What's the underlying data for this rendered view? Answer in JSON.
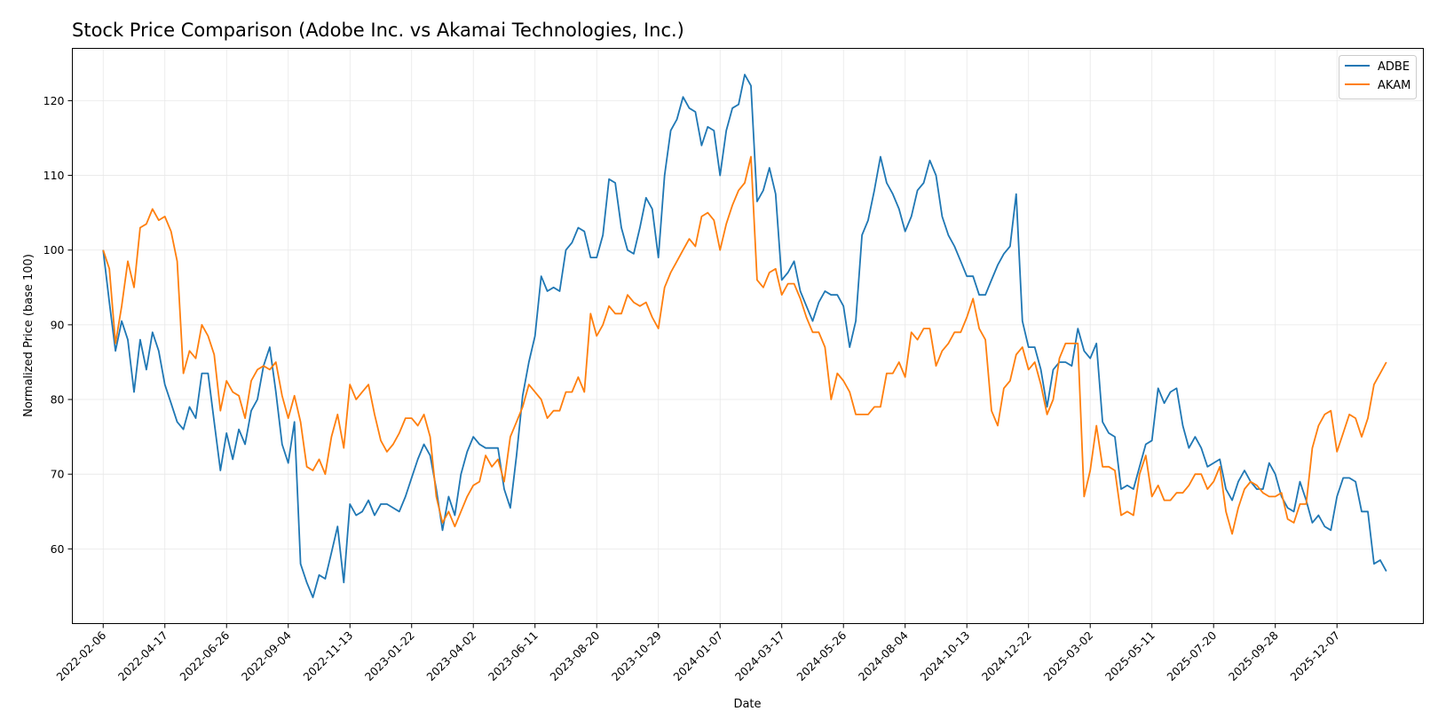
{
  "chart_data": {
    "type": "line",
    "title": "Stock Price Comparison (Adobe Inc. vs Akamai Technologies, Inc.)",
    "xlabel": "Date",
    "ylabel": "Normalized Price (base 100)",
    "ylim": [
      50,
      127
    ],
    "yticks": [
      60,
      70,
      80,
      90,
      100,
      110,
      120
    ],
    "xlim": [
      "2022-01-02",
      "2026-03-15"
    ],
    "xticks": [
      "2022-02-06",
      "2022-04-17",
      "2022-06-26",
      "2022-09-04",
      "2022-11-13",
      "2023-01-22",
      "2023-04-02",
      "2023-06-11",
      "2023-08-20",
      "2023-10-29",
      "2024-01-07",
      "2024-03-17",
      "2024-05-26",
      "2024-08-04",
      "2024-10-13",
      "2024-12-22",
      "2025-03-02",
      "2025-05-11",
      "2025-07-20",
      "2025-09-28",
      "2025-12-07"
    ],
    "grid": true,
    "legend": "top-right",
    "x_start": "2022-02-06",
    "x_step_days": 7,
    "series": [
      {
        "name": "ADBE",
        "color": "#1f77b4",
        "values": [
          100,
          93,
          86.5,
          90.5,
          88,
          81,
          88,
          84,
          89,
          86.5,
          82,
          79.5,
          77,
          76,
          79,
          77.5,
          83.5,
          83.5,
          77,
          70.5,
          75.5,
          72,
          76,
          74,
          78.5,
          80,
          84.5,
          87,
          81,
          74,
          71.5,
          77,
          58,
          55.5,
          53.5,
          56.5,
          56,
          59.5,
          63,
          55.5,
          66,
          64.5,
          65,
          66.5,
          64.5,
          66,
          66,
          65.5,
          65,
          67,
          69.5,
          72,
          74,
          72.5,
          68,
          62.5,
          67,
          64.5,
          70,
          73,
          75,
          74,
          73.5,
          73.5,
          73.5,
          68,
          65.5,
          72.5,
          80.5,
          85,
          88.5,
          96.5,
          94.5,
          95,
          94.5,
          100,
          101,
          103,
          102.5,
          99,
          99,
          102,
          109.5,
          109,
          103,
          100,
          99.5,
          103,
          107,
          105.5,
          99,
          110,
          116,
          117.5,
          120.5,
          119,
          118.5,
          114,
          116.5,
          116,
          110,
          116,
          119,
          119.5,
          123.5,
          122,
          106.5,
          108,
          111,
          107.5,
          96,
          97,
          98.5,
          94.5,
          92.5,
          90.5,
          93,
          94.5,
          94,
          94,
          92.5,
          87,
          90.5,
          102,
          104,
          108,
          112.5,
          109,
          107.5,
          105.5,
          102.5,
          104.5,
          108,
          109,
          112,
          110,
          104.5,
          102,
          100.5,
          98.5,
          96.5,
          96.5,
          94,
          94,
          96,
          98,
          99.5,
          100.5,
          107.5,
          90.5,
          87,
          87,
          84,
          79,
          84,
          85,
          85,
          84.5,
          89.5,
          86.5,
          85.5,
          87.5,
          77,
          75.5,
          75,
          68,
          68.5,
          68,
          71,
          74,
          74.5,
          81.5,
          79.5,
          81,
          81.5,
          76.5,
          73.5,
          75,
          73.5,
          71,
          71.5,
          72,
          68,
          66.5,
          69,
          70.5,
          69,
          68,
          68,
          71.5,
          70,
          67,
          65.5,
          65,
          69,
          66.5,
          63.5,
          64.5,
          63,
          62.5,
          67,
          69.5,
          69.5,
          69,
          65,
          65,
          58,
          58.5,
          57
        ]
      },
      {
        "name": "AKAM",
        "color": "#ff7f0e",
        "values": [
          100,
          97.5,
          87.5,
          92.5,
          98.5,
          95,
          103,
          103.5,
          105.5,
          104,
          104.5,
          102.5,
          98.5,
          83.5,
          86.5,
          85.5,
          90,
          88.5,
          86,
          78.5,
          82.5,
          81,
          80.5,
          77.5,
          82.5,
          84,
          84.5,
          84,
          85,
          80.5,
          77.5,
          80.5,
          77,
          71,
          70.5,
          72,
          70,
          75,
          78,
          73.5,
          82,
          80,
          81,
          82,
          78,
          74.5,
          73,
          74,
          75.5,
          77.5,
          77.5,
          76.5,
          78,
          75,
          67,
          63.5,
          65,
          63,
          65,
          67,
          68.5,
          69,
          72.5,
          71,
          72,
          69,
          75,
          77,
          79,
          82,
          81,
          80,
          77.5,
          78.5,
          78.5,
          81,
          81,
          83,
          81,
          91.5,
          88.5,
          90,
          92.5,
          91.5,
          91.5,
          94,
          93,
          92.5,
          93,
          91,
          89.5,
          95,
          97,
          98.5,
          100,
          101.5,
          100.5,
          104.5,
          105,
          104,
          100,
          103.5,
          106,
          108,
          109,
          112.5,
          96,
          95,
          97,
          97.5,
          94,
          95.5,
          95.5,
          93.5,
          91,
          89,
          89,
          87,
          80,
          83.5,
          82.5,
          81,
          78,
          78,
          78,
          79,
          79,
          83.5,
          83.5,
          85,
          83,
          89,
          88,
          89.5,
          89.5,
          84.5,
          86.5,
          87.5,
          89,
          89,
          91,
          93.5,
          89.5,
          88,
          78.5,
          76.5,
          81.5,
          82.5,
          86,
          87,
          84,
          85,
          82,
          78,
          80,
          85.5,
          87.5,
          87.5,
          87.5,
          67,
          70.5,
          76.5,
          71,
          71,
          70.5,
          64.5,
          65,
          64.5,
          70,
          72.5,
          67,
          68.5,
          66.5,
          66.5,
          67.5,
          67.5,
          68.5,
          70,
          70,
          68,
          69,
          71,
          65,
          62,
          65.5,
          68,
          69,
          68.5,
          67.5,
          67,
          67,
          67.5,
          64,
          63.5,
          66,
          66,
          73.5,
          76.5,
          78,
          78.5,
          73,
          75.5,
          78,
          77.5,
          75,
          77.5,
          82,
          83.5,
          85
        ]
      }
    ]
  }
}
